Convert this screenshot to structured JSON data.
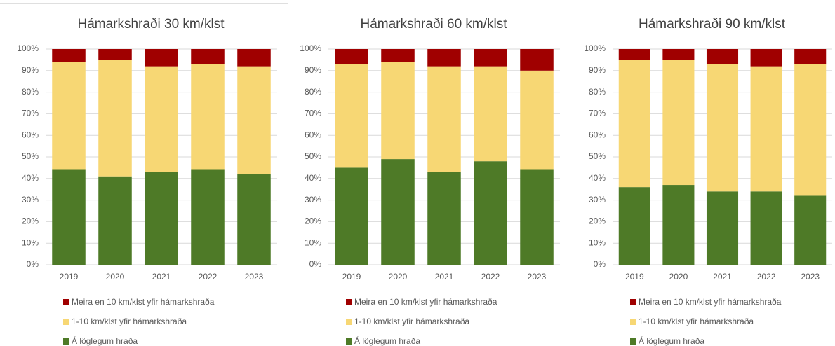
{
  "chart_data": [
    {
      "type": "bar",
      "title": "Hámarkshraði 30 km/klst",
      "stacked": true,
      "categories": [
        "2019",
        "2020",
        "2021",
        "2022",
        "2023"
      ],
      "series": [
        {
          "name": "Meira en 10 km/klst yfir hámarkshraða",
          "color": "#a00000",
          "values": [
            6,
            5,
            8,
            7,
            8
          ]
        },
        {
          "name": "1-10 km/klst yfir hámarkshraða",
          "color": "#f7d774",
          "values": [
            50,
            54,
            49,
            49,
            50
          ]
        },
        {
          "name": "Á löglegum hraða",
          "color": "#4e7a27",
          "values": [
            44,
            41,
            43,
            44,
            42
          ]
        }
      ],
      "ylim": [
        0,
        100
      ],
      "yticks": [
        {
          "value": 0,
          "label": "0%"
        },
        {
          "value": 10,
          "label": "10%"
        },
        {
          "value": 20,
          "label": "20%"
        },
        {
          "value": 30,
          "label": "30%"
        },
        {
          "value": 40,
          "label": "40%"
        },
        {
          "value": 50,
          "label": "50%"
        },
        {
          "value": 60,
          "label": "60%"
        },
        {
          "value": 70,
          "label": "70%"
        },
        {
          "value": 80,
          "label": "80%"
        },
        {
          "value": 90,
          "label": "90%"
        },
        {
          "value": 100,
          "label": "100%"
        }
      ],
      "grid": true,
      "legend": "bottom"
    },
    {
      "type": "bar",
      "title": "Hámarkshraði 60 km/klst",
      "stacked": true,
      "categories": [
        "2019",
        "2020",
        "2021",
        "2022",
        "2023"
      ],
      "series": [
        {
          "name": "Meira en 10 km/klst yfir hámarkshraða",
          "color": "#a00000",
          "values": [
            7,
            6,
            8,
            8,
            10
          ]
        },
        {
          "name": "1-10 km/klst yfir hámarkshraða",
          "color": "#f7d774",
          "values": [
            48,
            45,
            49,
            44,
            46
          ]
        },
        {
          "name": "Á löglegum hraða",
          "color": "#4e7a27",
          "values": [
            45,
            49,
            43,
            48,
            44
          ]
        }
      ],
      "ylim": [
        0,
        100
      ],
      "yticks": [
        {
          "value": 0,
          "label": "0%"
        },
        {
          "value": 10,
          "label": "10%"
        },
        {
          "value": 20,
          "label": "20%"
        },
        {
          "value": 30,
          "label": "30%"
        },
        {
          "value": 40,
          "label": "40%"
        },
        {
          "value": 50,
          "label": "50%"
        },
        {
          "value": 60,
          "label": "60%"
        },
        {
          "value": 70,
          "label": "70%"
        },
        {
          "value": 80,
          "label": "80%"
        },
        {
          "value": 90,
          "label": "90%"
        },
        {
          "value": 100,
          "label": "100%"
        }
      ],
      "grid": true,
      "legend": "bottom"
    },
    {
      "type": "bar",
      "title": "Hámarkshraði 90 km/klst",
      "stacked": true,
      "categories": [
        "2019",
        "2020",
        "2021",
        "2022",
        "2023"
      ],
      "series": [
        {
          "name": "Meira en 10 km/klst yfir hámarkshraða",
          "color": "#a00000",
          "values": [
            5,
            5,
            7,
            8,
            7
          ]
        },
        {
          "name": "1-10 km/klst yfir hámarkshraða",
          "color": "#f7d774",
          "values": [
            59,
            58,
            59,
            58,
            61
          ]
        },
        {
          "name": "Á löglegum hraða",
          "color": "#4e7a27",
          "values": [
            36,
            37,
            34,
            34,
            32
          ]
        }
      ],
      "ylim": [
        0,
        100
      ],
      "yticks": [
        {
          "value": 0,
          "label": "0%"
        },
        {
          "value": 10,
          "label": "10%"
        },
        {
          "value": 20,
          "label": "20%"
        },
        {
          "value": 30,
          "label": "30%"
        },
        {
          "value": 40,
          "label": "40%"
        },
        {
          "value": 50,
          "label": "50%"
        },
        {
          "value": 60,
          "label": "60%"
        },
        {
          "value": 70,
          "label": "70%"
        },
        {
          "value": 80,
          "label": "80%"
        },
        {
          "value": 90,
          "label": "90%"
        },
        {
          "value": 100,
          "label": "100%"
        }
      ],
      "grid": true,
      "legend": "bottom"
    }
  ]
}
